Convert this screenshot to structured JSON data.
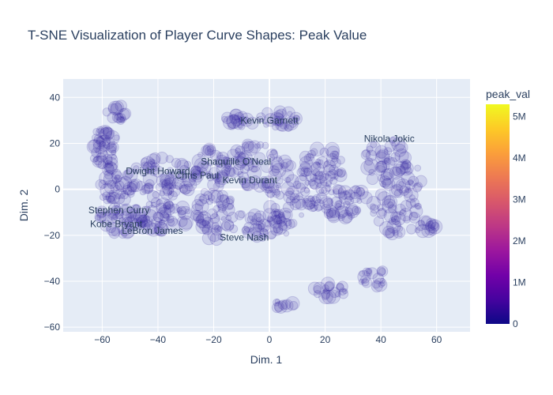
{
  "chart_data": {
    "type": "scatter",
    "title": "T-SNE Visualization of Player Curve Shapes: Peak Value",
    "xlabel": "Dim. 1",
    "ylabel": "Dim. 2",
    "xlim": [
      -74,
      72
    ],
    "ylim": [
      -62,
      48
    ],
    "x_ticks": [
      -60,
      -40,
      -20,
      0,
      20,
      40,
      60
    ],
    "y_ticks": [
      -60,
      -40,
      -20,
      0,
      20,
      40
    ],
    "x_tick_labels": [
      "−60",
      "−40",
      "−20",
      "0",
      "20",
      "40",
      "60"
    ],
    "y_tick_labels": [
      "−60",
      "−40",
      "−20",
      "0",
      "20",
      "40"
    ],
    "grid": true,
    "colorbar": {
      "title": "peak_val",
      "range": [
        0,
        5300000
      ],
      "ticks": [
        0,
        1000000,
        2000000,
        3000000,
        4000000,
        5000000
      ],
      "tick_labels": [
        "0",
        "1M",
        "2M",
        "3M",
        "4M",
        "5M"
      ],
      "colors": [
        "#0d0887",
        "#46039f",
        "#7201a8",
        "#9c179e",
        "#bd3786",
        "#d8576b",
        "#ed7953",
        "#fb9f3a",
        "#fdca26",
        "#f0f921"
      ]
    },
    "marker_color": "#2a1b9a",
    "annotations": [
      {
        "text": "Kevin Garnett",
        "x": 0,
        "y": 30
      },
      {
        "text": "Nikola Jokic",
        "x": 43,
        "y": 22
      },
      {
        "text": "Dwight Howard",
        "x": -40,
        "y": 8
      },
      {
        "text": "Shaquille O'Neal",
        "x": -12,
        "y": 12
      },
      {
        "text": "Chris Paul",
        "x": -26,
        "y": 6
      },
      {
        "text": "Kevin Durant",
        "x": -7,
        "y": 4
      },
      {
        "text": "Stephen Curry",
        "x": -54,
        "y": -9
      },
      {
        "text": "Kobe Bryant",
        "x": -55,
        "y": -15
      },
      {
        "text": "LeBron James",
        "x": -42,
        "y": -18
      },
      {
        "text": "Steve Nash",
        "x": -9,
        "y": -21
      }
    ],
    "clusters": [
      {
        "cx": -55,
        "cy": 33,
        "rx": 4,
        "ry": 4,
        "n": 16
      },
      {
        "cx": -59,
        "cy": 18,
        "rx": 5,
        "ry": 9,
        "n": 45
      },
      {
        "cx": -55,
        "cy": 2,
        "rx": 7,
        "ry": 8,
        "n": 45
      },
      {
        "cx": -53,
        "cy": -13,
        "rx": 9,
        "ry": 7,
        "n": 50
      },
      {
        "cx": -38,
        "cy": 5,
        "rx": 12,
        "ry": 9,
        "n": 70
      },
      {
        "cx": -38,
        "cy": -12,
        "rx": 10,
        "ry": 7,
        "n": 55
      },
      {
        "cx": -20,
        "cy": -10,
        "rx": 7,
        "ry": 12,
        "n": 60
      },
      {
        "cx": -20,
        "cy": 10,
        "rx": 7,
        "ry": 8,
        "n": 45
      },
      {
        "cx": -12,
        "cy": 30,
        "rx": 5,
        "ry": 3,
        "n": 18
      },
      {
        "cx": 2,
        "cy": 30,
        "rx": 9,
        "ry": 4,
        "n": 30
      },
      {
        "cx": -5,
        "cy": 10,
        "rx": 10,
        "ry": 10,
        "n": 55
      },
      {
        "cx": -2,
        "cy": -15,
        "rx": 12,
        "ry": 6,
        "n": 50
      },
      {
        "cx": 8,
        "cy": -2,
        "rx": 9,
        "ry": 15,
        "n": 60
      },
      {
        "cx": 20,
        "cy": 12,
        "rx": 8,
        "ry": 9,
        "n": 45
      },
      {
        "cx": 25,
        "cy": -5,
        "rx": 10,
        "ry": 8,
        "n": 55
      },
      {
        "cx": 42,
        "cy": 12,
        "rx": 8,
        "ry": 10,
        "n": 45
      },
      {
        "cx": 45,
        "cy": -10,
        "rx": 9,
        "ry": 10,
        "n": 50
      },
      {
        "cx": 56,
        "cy": -16,
        "rx": 5,
        "ry": 3,
        "n": 15
      },
      {
        "cx": 50,
        "cy": 5,
        "rx": 5,
        "ry": 6,
        "n": 20
      },
      {
        "cx": 37,
        "cy": -38,
        "rx": 5,
        "ry": 5,
        "n": 20
      },
      {
        "cx": 22,
        "cy": -44,
        "rx": 6,
        "ry": 3,
        "n": 22
      },
      {
        "cx": 5,
        "cy": -50,
        "rx": 4,
        "ry": 2,
        "n": 10
      }
    ]
  }
}
